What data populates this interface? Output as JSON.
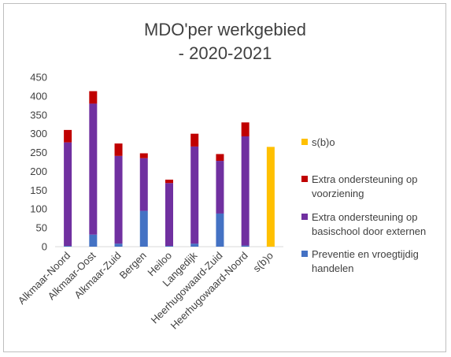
{
  "chart_data": {
    "type": "bar",
    "stacked": true,
    "title": [
      "MDO'per werkgebied",
      "- 2020-2021"
    ],
    "xlabel": "",
    "ylabel": "",
    "ylim": [
      0,
      450
    ],
    "yticks": [
      0,
      50,
      100,
      150,
      200,
      250,
      300,
      350,
      400,
      450
    ],
    "grid": false,
    "legend_position": "right",
    "categories": [
      "Alkmaar-Noord",
      "Alkmaar-Oost",
      "Alkmaar-Zuid",
      "Bergen",
      "Heiloo",
      "Langedijk",
      "Heerhugowaard-Zuid",
      "Heerhugowaard-Noord",
      "s(b)o"
    ],
    "series": [
      {
        "name": "Preventie en vroegtijdig handelen",
        "color": "#4472C4",
        "values": [
          2,
          32,
          8,
          95,
          2,
          8,
          88,
          3,
          0
        ]
      },
      {
        "name": "Extra ondersteuning op basischool door externen",
        "color": "#7030A0",
        "values": [
          275,
          348,
          233,
          140,
          167,
          258,
          140,
          290,
          0
        ]
      },
      {
        "name": "Extra ondersteuning op voorziening",
        "color": "#C00000",
        "values": [
          33,
          33,
          33,
          13,
          9,
          34,
          18,
          37,
          0
        ]
      },
      {
        "name": "s(b)o",
        "color": "#FFC000",
        "values": [
          0,
          0,
          0,
          0,
          0,
          0,
          0,
          0,
          265
        ]
      }
    ],
    "legend_order": [
      "s(b)o",
      "Extra ondersteuning op voorziening",
      "Extra ondersteuning op basischool door externen",
      "Preventie en vroegtijdig handelen"
    ],
    "legend_lines": {
      "s(b)o": [
        "s(b)o"
      ],
      "Extra ondersteuning op voorziening": [
        "Extra ondersteuning op",
        "voorziening"
      ],
      "Extra ondersteuning op basischool door externen": [
        "Extra ondersteuning op",
        "basischool door externen"
      ],
      "Preventie en vroegtijdig handelen": [
        "Preventie en vroegtijdig",
        "handelen"
      ]
    }
  }
}
